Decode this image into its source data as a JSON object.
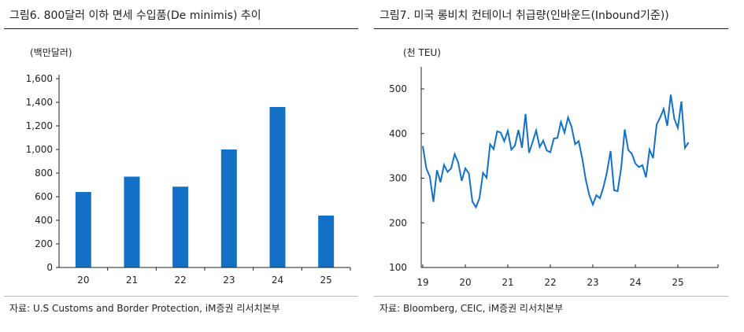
{
  "left": {
    "title": "그림6.  800달러 이하 면세 수입품(De minimis) 추이",
    "unit": "(백만달러)",
    "source": "자료: U.S Customs and Border Protection, iM증권 리서치본부"
  },
  "right": {
    "title": "그림7.  미국 롱비치 컨테이너 취급량(인바운드(Inbound기준))",
    "unit": "(천 TEU)",
    "source": "자료: Bloomberg, CEIC, iM증권 리서치본부"
  },
  "chart_data": [
    {
      "type": "bar",
      "title": "800달러 이하 면세 수입품(De minimis) 추이",
      "ylabel": "(백만달러)",
      "categories": [
        "20",
        "21",
        "22",
        "23",
        "24",
        "25"
      ],
      "values": [
        640,
        770,
        685,
        1000,
        1360,
        440
      ],
      "ylim": [
        0,
        1600
      ],
      "yticks": [
        "0",
        "200",
        "400",
        "600",
        "800",
        "1,000",
        "1,200",
        "1,400",
        "1,600"
      ],
      "color": "#1470c4"
    },
    {
      "type": "line",
      "title": "미국 롱비치 컨테이너 취급량(인바운드(Inbound기준))",
      "ylabel": "(천 TEU)",
      "x_start": "2019-01",
      "frequency": "monthly",
      "xticks": [
        "19",
        "20",
        "21",
        "22",
        "23",
        "24",
        "25"
      ],
      "ylim": [
        100,
        500
      ],
      "yticks": [
        "100",
        "200",
        "300",
        "400",
        "500"
      ],
      "color": "#1470c4",
      "values": [
        372,
        322,
        303,
        247,
        318,
        291,
        330,
        314,
        322,
        354,
        335,
        294,
        322,
        311,
        248,
        235,
        255,
        312,
        301,
        376,
        365,
        405,
        402,
        383,
        406,
        364,
        373,
        408,
        368,
        444,
        357,
        381,
        407,
        370,
        384,
        362,
        358,
        389,
        390,
        426,
        402,
        436,
        415,
        376,
        383,
        345,
        297,
        262,
        241,
        262,
        255,
        280,
        314,
        361,
        273,
        271,
        323,
        409,
        363,
        355,
        333,
        325,
        329,
        302,
        364,
        345,
        420,
        436,
        455,
        417,
        487,
        433,
        413,
        472,
        368,
        380
      ]
    }
  ]
}
